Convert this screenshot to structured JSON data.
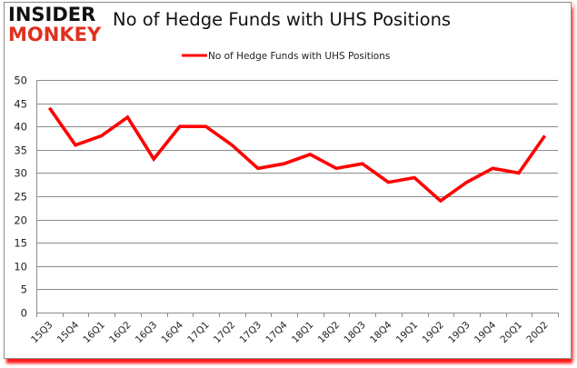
{
  "logo": {
    "line1": "INSIDER",
    "line2": "MONKEY"
  },
  "title": "No of Hedge Funds with UHS Positions",
  "legend": {
    "label": "No of Hedge Funds with UHS Positions",
    "color": "#ff0000"
  },
  "colors": {
    "line": "#ff0000",
    "grid": "#8c8c8c",
    "shadow": "#ff1a1a"
  },
  "chart_data": {
    "type": "line",
    "title": "No of Hedge Funds with UHS Positions",
    "xlabel": "",
    "ylabel": "",
    "ylim": [
      0,
      50
    ],
    "yticks": [
      0,
      5,
      10,
      15,
      20,
      25,
      30,
      35,
      40,
      45,
      50
    ],
    "grid": true,
    "legend_position": "top",
    "categories": [
      "15Q3",
      "15Q4",
      "16Q1",
      "16Q2",
      "16Q3",
      "16Q4",
      "17Q1",
      "17Q2",
      "17Q3",
      "17Q4",
      "18Q1",
      "18Q2",
      "18Q3",
      "18Q4",
      "19Q1",
      "19Q2",
      "19Q3",
      "19Q4",
      "20Q1",
      "20Q2"
    ],
    "series": [
      {
        "name": "No of Hedge Funds with UHS Positions",
        "values": [
          44,
          36,
          38,
          42,
          33,
          40,
          40,
          36,
          31,
          32,
          34,
          31,
          32,
          28,
          29,
          24,
          28,
          31,
          30,
          38
        ]
      }
    ]
  }
}
